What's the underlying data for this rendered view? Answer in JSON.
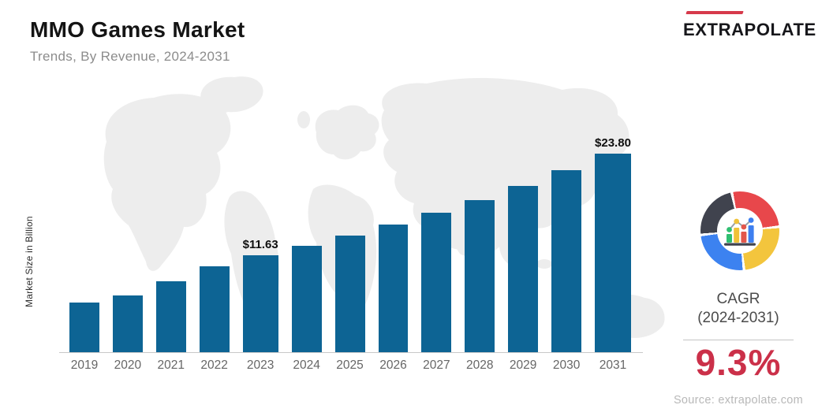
{
  "header": {
    "title": "MMO Games Market",
    "subtitle": "Trends, By Revenue, 2024-2031"
  },
  "brand": {
    "name": "EXTRAPOLATE",
    "accent_color": "#d6394b",
    "text_color": "#17171b"
  },
  "chart_data": {
    "type": "bar",
    "title": "MMO Games Market",
    "subtitle": "Trends, By Revenue, 2024-2031",
    "ylabel": "Market Size in Billion",
    "unit": "USD Billion",
    "categories": [
      "2019",
      "2020",
      "2021",
      "2022",
      "2023",
      "2024",
      "2025",
      "2026",
      "2027",
      "2028",
      "2029",
      "2030",
      "2031"
    ],
    "values": [
      5.94,
      6.81,
      8.53,
      10.25,
      11.63,
      12.77,
      13.96,
      15.26,
      16.68,
      18.23,
      19.93,
      21.78,
      23.8
    ],
    "value_labels": {
      "2023": "$11.63",
      "2031": "$23.80"
    },
    "bar_color": "#0d6494",
    "ylim": [
      0,
      25
    ],
    "grid": false,
    "legend": "none"
  },
  "side_panel": {
    "cagr_line1": "CAGR",
    "cagr_line2": "(2024-2031)",
    "cagr_value": "9.3%",
    "cagr_value_color": "#cb3049",
    "source": "Source: extrapolate.com",
    "donut_icon": {
      "segments": [
        "#e8474b",
        "#f3c53d",
        "#3c82f0",
        "#40434e"
      ],
      "inner_bars": [
        "#2fbf71",
        "#f0c237",
        "#e2574c",
        "#3d7ff0"
      ],
      "line": "#9aa0a6",
      "base": "#3f434e"
    }
  }
}
